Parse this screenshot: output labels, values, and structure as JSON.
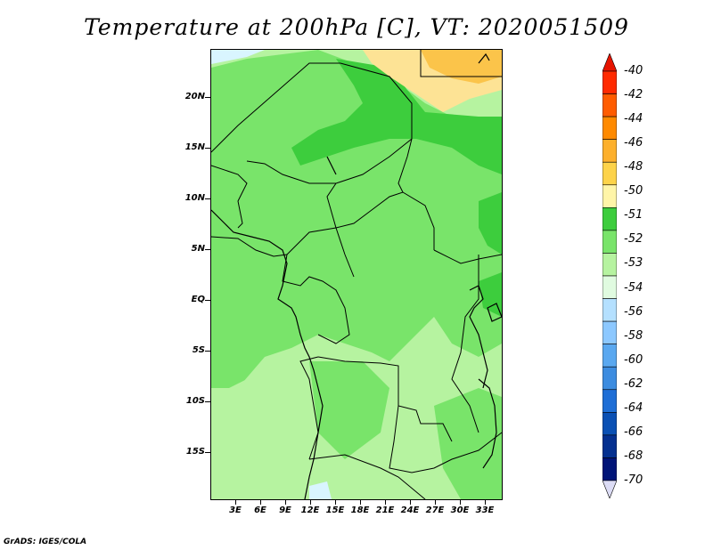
{
  "title": "Temperature at 200hPa [C], VT: 2020051509",
  "credit": "GrADS: IGES/COLA",
  "map": {
    "lat_labels": [
      "20N",
      "15N",
      "10N",
      "5N",
      "EQ",
      "5S",
      "10S",
      "15S"
    ],
    "lon_labels": [
      "3E",
      "6E",
      "9E",
      "12E",
      "15E",
      "18E",
      "21E",
      "24E",
      "27E",
      "30E",
      "33E"
    ],
    "fill_colors": {
      "light_green": "#b6f3a0",
      "mid_green": "#79e46a",
      "dark_green": "#3dcd3d",
      "pale_yellow": "#fde395",
      "orange_yellow": "#fbc44a",
      "pale_blue": "#d9f5ff"
    }
  },
  "colorbar": {
    "labels": [
      "-40",
      "-42",
      "-44",
      "-46",
      "-48",
      "-50",
      "-51",
      "-52",
      "-53",
      "-54",
      "-56",
      "-58",
      "-60",
      "-62",
      "-64",
      "-66",
      "-68",
      "-70"
    ],
    "colors": [
      "#ff2a00",
      "#ff5c00",
      "#ff8a00",
      "#fdb02c",
      "#fdd34a",
      "#fff5a8",
      "#3dcd3d",
      "#79e46a",
      "#b6f3a0",
      "#e0fbe0",
      "#b4e0ff",
      "#8cc8ff",
      "#5aa8f0",
      "#3c8ce0",
      "#1e6ed6",
      "#0a50b4",
      "#043090",
      "#001478"
    ],
    "end_low_color": "#dcdcf5",
    "end_high_color": "#e61400"
  }
}
